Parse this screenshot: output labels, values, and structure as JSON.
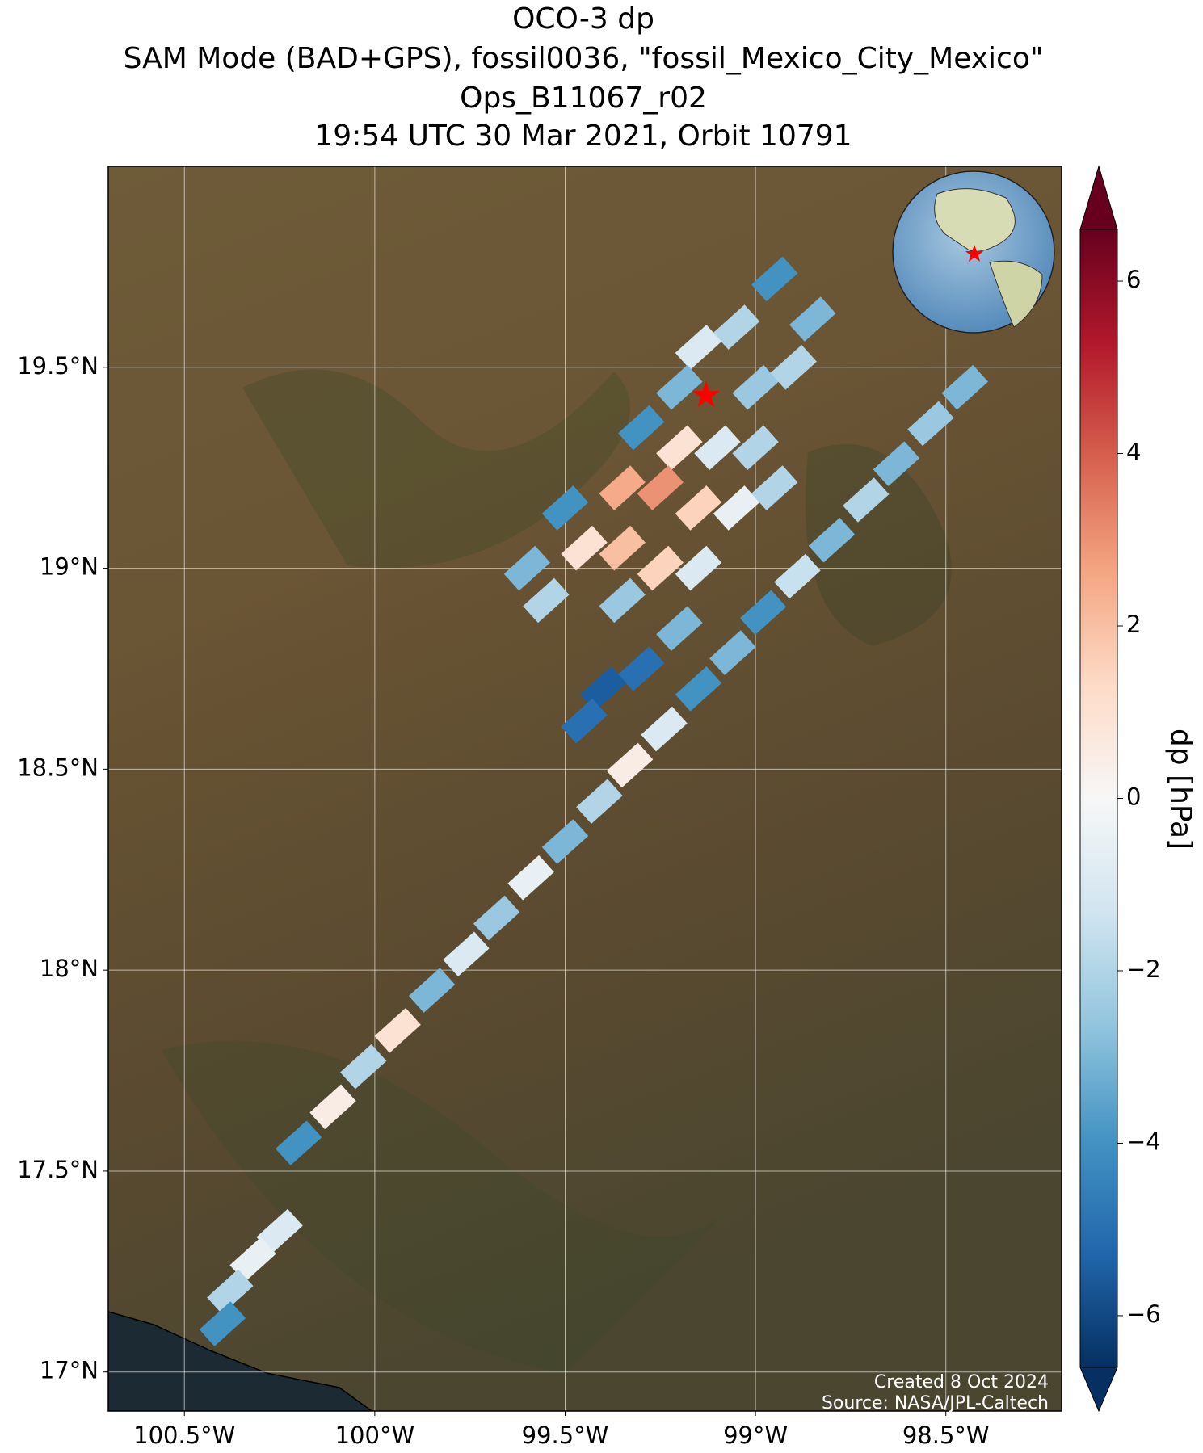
{
  "chart_data": {
    "type": "map",
    "title": [
      "OCO-3 dp",
      "SAM Mode (BAD+GPS), fossil0036, \"fossil_Mexico_City_Mexico\"",
      "Ops_B11067_r02",
      "19:54 UTC 30 Mar 2021, Orbit 10791"
    ],
    "xlim": [
      -100.7,
      -98.196
    ],
    "ylim": [
      16.903,
      20.0
    ],
    "xticks": [
      {
        "value": -100.5,
        "label": "100.5°W"
      },
      {
        "value": -100,
        "label": "100°W"
      },
      {
        "value": -99.5,
        "label": "99.5°W"
      },
      {
        "value": -99,
        "label": "99°W"
      },
      {
        "value": -98.5,
        "label": "98.5°W"
      }
    ],
    "yticks": [
      {
        "value": 17,
        "label": "17°N"
      },
      {
        "value": 17.5,
        "label": "17.5°N"
      },
      {
        "value": 18,
        "label": "18°N"
      },
      {
        "value": 18.5,
        "label": "18.5°N"
      },
      {
        "value": 19,
        "label": "19°N"
      },
      {
        "value": 19.5,
        "label": "19.5°N"
      }
    ],
    "grid": true,
    "colorbar": {
      "label": "dp [hPa]",
      "lim": [
        -6.6,
        6.6
      ],
      "ticks": [
        {
          "value": -6,
          "label": "−6"
        },
        {
          "value": -4,
          "label": "−4"
        },
        {
          "value": -2,
          "label": "−2"
        },
        0,
        2,
        4,
        6
      ]
    },
    "target": {
      "lon": -99.13,
      "lat": 19.43,
      "color": "#ff0000"
    },
    "points": {
      "lon": [
        -98.95,
        -98.85,
        -99.05,
        -99.15,
        -99.2,
        -99.0,
        -98.9,
        -99.3,
        -99.2,
        -99.1,
        -99.0,
        -99.35,
        -99.25,
        -99.15,
        -99.05,
        -98.95,
        -99.5,
        -99.45,
        -99.35,
        -99.25,
        -99.15,
        -99.6,
        -99.55,
        -99.35,
        -99.2,
        -99.3,
        -99.4,
        -99.45,
        -98.45,
        -98.54,
        -98.63,
        -98.71,
        -98.8,
        -98.89,
        -98.98,
        -99.06,
        -99.15,
        -99.24,
        -99.33,
        -99.41,
        -99.5,
        -99.59,
        -99.68,
        -99.76,
        -99.85,
        -99.94,
        -100.03,
        -100.11,
        -100.2,
        -100.25,
        -100.32,
        -100.38,
        -100.4
      ],
      "lat": [
        19.72,
        19.62,
        19.6,
        19.55,
        19.45,
        19.45,
        19.5,
        19.35,
        19.3,
        19.3,
        19.3,
        19.2,
        19.2,
        19.15,
        19.15,
        19.2,
        19.15,
        19.05,
        19.05,
        19.0,
        19.0,
        19.0,
        18.92,
        18.92,
        18.85,
        18.75,
        18.7,
        18.62,
        19.45,
        19.36,
        19.26,
        19.17,
        19.07,
        18.98,
        18.89,
        18.79,
        18.7,
        18.6,
        18.51,
        18.42,
        18.32,
        18.23,
        18.13,
        18.04,
        17.95,
        17.85,
        17.76,
        17.66,
        17.57,
        17.35,
        17.28,
        17.2,
        17.12
      ],
      "values": [
        -4,
        -3,
        -2,
        -1,
        -3,
        -2.5,
        -2,
        -4,
        1,
        -1,
        -2,
        2.5,
        3,
        1.5,
        -0.5,
        -2,
        -4,
        1,
        2,
        1.5,
        -1,
        -3,
        -2,
        -2.5,
        -3,
        -5,
        -5.5,
        -5,
        -3,
        -2.5,
        -3,
        -2,
        -3,
        -1.5,
        -4,
        -3,
        -4,
        -1,
        0.5,
        -2,
        -3,
        -0.5,
        -2.5,
        -1,
        -3,
        1,
        -2,
        0.5,
        -4,
        -1,
        -0.5,
        -2,
        -4
      ]
    },
    "annotations": [
      "Created 8 Oct 2024",
      "Source: NASA/JPL-Caltech"
    ]
  }
}
